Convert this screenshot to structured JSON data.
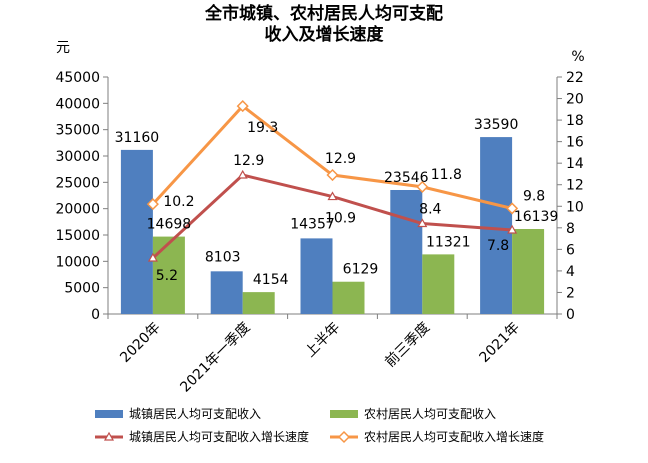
{
  "chart_data": {
    "type": "bar",
    "title": [
      "全市城镇、农村居民人均可支配",
      "收入及增长速度"
    ],
    "y_left_unit": "元",
    "y_right_unit": "%",
    "y_left_range": [
      0,
      45000
    ],
    "y_left_step": 5000,
    "y_right_range": [
      0,
      22
    ],
    "y_right_step": 2,
    "categories": [
      "2020年",
      "2021年一季度",
      "上半年",
      "前三季度",
      "2021年"
    ],
    "bar_series": [
      {
        "name": "城镇居民人均可支配收入",
        "values": [
          31160,
          8103,
          14357,
          23546,
          33590
        ],
        "color": "#4f7fbf"
      },
      {
        "name": "农村居民人均可支配收入",
        "values": [
          14698,
          4154,
          6129,
          11321,
          16139
        ],
        "color": "#8cb651"
      }
    ],
    "line_series": [
      {
        "name": "城镇居民人均可支配收入增长速度",
        "values": [
          5.2,
          12.9,
          10.9,
          8.4,
          7.8
        ],
        "color": "#c0504d",
        "marker": "triangle"
      },
      {
        "name": "农村居民人均可支配收入增长速度",
        "values": [
          10.2,
          19.3,
          12.9,
          11.8,
          9.8
        ],
        "color": "#f79646",
        "marker": "diamond"
      }
    ],
    "legend_position": "bottom",
    "grid": false
  }
}
